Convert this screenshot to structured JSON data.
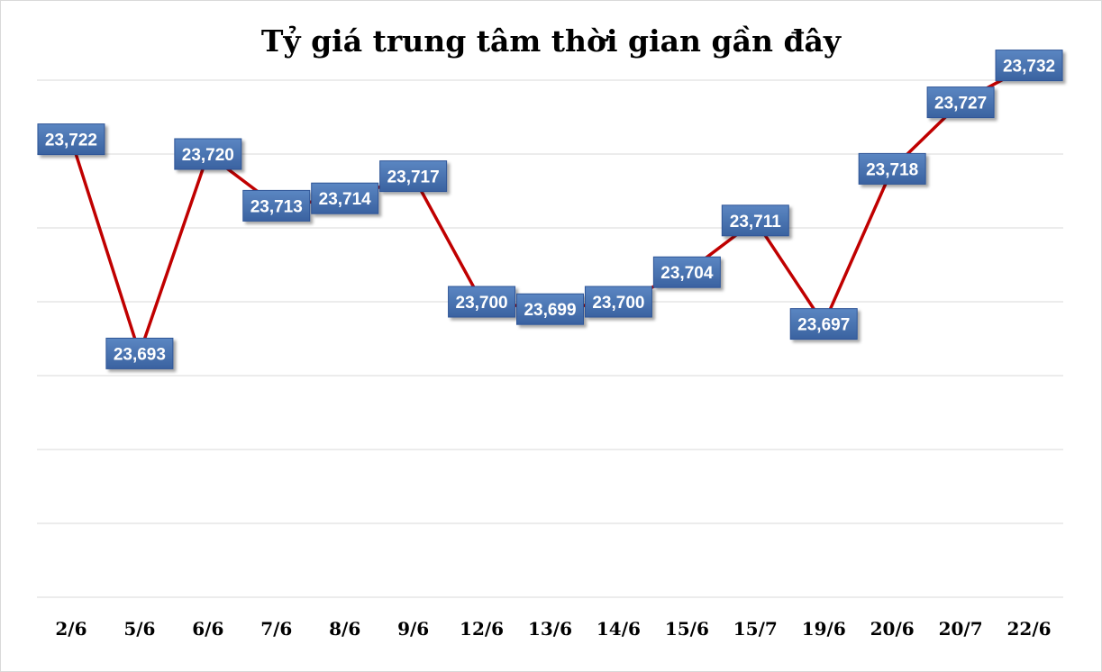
{
  "chart_data": {
    "type": "line",
    "title": "Tỷ giá trung tâm thời gian gần đây",
    "categories": [
      "2/6",
      "5/6",
      "6/6",
      "7/6",
      "8/6",
      "9/6",
      "12/6",
      "13/6",
      "14/6",
      "15/6",
      "15/7",
      "19/6",
      "20/6",
      "20/7",
      "22/6"
    ],
    "series": [
      {
        "values": [
          23722,
          23693,
          23720,
          23713,
          23714,
          23717,
          23700,
          23699,
          23700,
          23704,
          23711,
          23697,
          23718,
          23727,
          23732
        ]
      }
    ],
    "value_labels": [
      "23,722",
      "23,693",
      "23,720",
      "23,713",
      "23,714",
      "23,717",
      "23,700",
      "23,699",
      "23,700",
      "23,704",
      "23,711",
      "23,697",
      "23,718",
      "23,727",
      "23,732"
    ],
    "ylim": [
      23660,
      23730
    ],
    "grid": true,
    "legend": "none",
    "colors": {
      "line": "#c00000",
      "label_fill": "#4a74b0",
      "label_border": "#2f5597"
    }
  }
}
